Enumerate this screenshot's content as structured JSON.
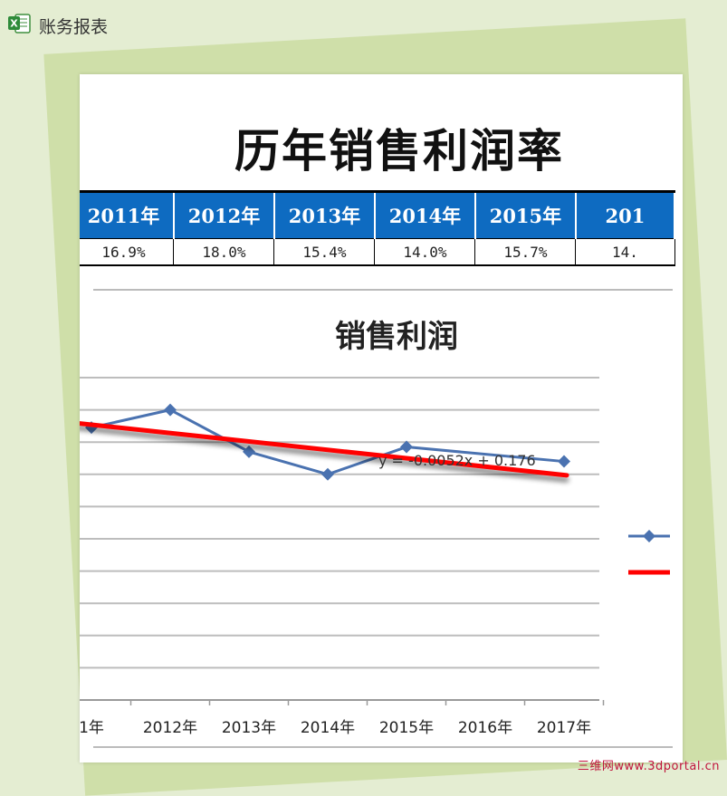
{
  "app": {
    "title": "账务报表",
    "icon": "excel-icon"
  },
  "report": {
    "title": "历年销售利润率"
  },
  "table": {
    "headers": [
      "2011年",
      "2012年",
      "2013年",
      "2014年",
      "2015年",
      "201"
    ],
    "values": [
      "16.9%",
      "18.0%",
      "15.4%",
      "14.0%",
      "15.7%",
      "14."
    ]
  },
  "chart_data": {
    "type": "line",
    "title": "销售利润",
    "categories": [
      "1年",
      "2012年",
      "2013年",
      "2014年",
      "2015年",
      "2016年",
      "2017年"
    ],
    "series": [
      {
        "values": [
          0.169,
          0.18,
          0.154,
          0.14,
          0.157,
          null,
          0.148
        ],
        "color": "#4a72b0",
        "marker": "diamond"
      }
    ],
    "trendline": {
      "equation": "y = -0.0052x + 0.176",
      "color": "#ff0000",
      "slope": -0.0052,
      "intercept": 0.176
    },
    "gridlines": true,
    "legend": "right"
  },
  "watermark": "三维网www.3dportal.cn"
}
